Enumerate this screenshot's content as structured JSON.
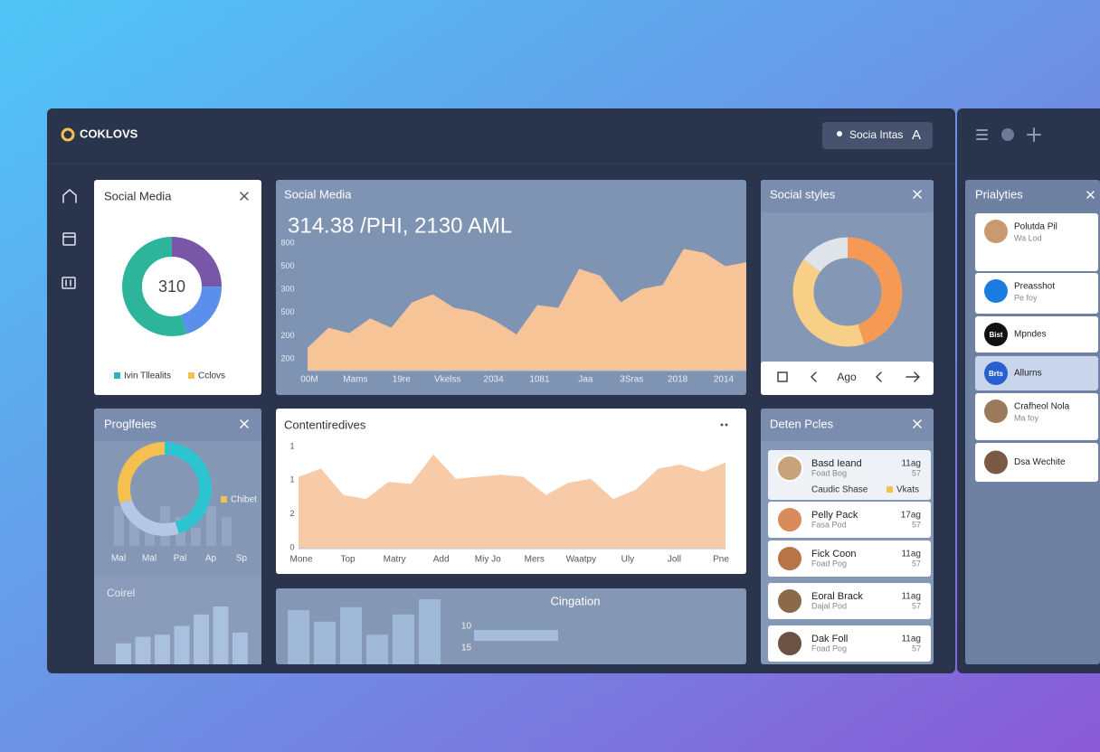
{
  "brand": "COKLOVS",
  "header_button": {
    "label": "Socia Intas",
    "letter": "A"
  },
  "styles_nav_label": "Ago",
  "people_card": {
    "title": "Deten Pcles",
    "items": [
      {
        "name": "Basd Ieand",
        "sub": "Foad Bog",
        "value": "11ag",
        "extra": "57"
      },
      {
        "name": "Pelly Pack",
        "sub": "Fasa Pod",
        "value": "17ag",
        "extra": "57"
      },
      {
        "name": "Fick Coon",
        "sub": "Foad Pog",
        "value": "11ag",
        "extra": "57"
      },
      {
        "name": "Eoral Brack",
        "sub": "Dajal Pod",
        "value": "11ag",
        "extra": "57"
      },
      {
        "name": "Dak Foll",
        "sub": "Foad Pog",
        "value": "11ag",
        "extra": "57"
      }
    ],
    "footer": [
      "Caudic Shase",
      "Vkats"
    ]
  },
  "side_panel": {
    "title": "Prialyties",
    "items": [
      {
        "name": "Polutda Pil",
        "sub": "Wa Lod"
      },
      {
        "name": "Preasshot",
        "sub": "Pe foy"
      },
      {
        "name": "Mpndes",
        "avatar": "Bist"
      },
      {
        "name": "Allurns",
        "avatar": "Brts"
      },
      {
        "name": "Crafheol Nola",
        "sub": "Ma foy"
      },
      {
        "name": "Dsa Wechite"
      }
    ]
  },
  "chart_data": [
    {
      "type": "pie",
      "title": "Social Media",
      "center_label": "310",
      "values": [
        25,
        20,
        55
      ],
      "colors": [
        "#7a56a8",
        "#5a8fec",
        "#2db59c"
      ],
      "legend": [
        {
          "name": "Ivin Tllealits",
          "color": "#2bb6c4"
        },
        {
          "name": "Cclovs",
          "color": "#f4c150"
        }
      ]
    },
    {
      "type": "area",
      "title": "Social Media",
      "subtitle": "314.38 /PHI, 2130 AML",
      "y_labels": [
        "800",
        "500",
        "300",
        "500",
        "200",
        "200"
      ],
      "x_labels": [
        "00M",
        "Mams",
        "19re",
        "Vkelss",
        "2034",
        "1081",
        "Jaa",
        "3Sras",
        "2018",
        "2014"
      ],
      "values": [
        17,
        32,
        28,
        39,
        32,
        51,
        57,
        47,
        44,
        37,
        27,
        49,
        47,
        76,
        71,
        51,
        61,
        64,
        91,
        88,
        78,
        81
      ],
      "ylim": [
        0,
        100
      ],
      "color": "#f6c496"
    },
    {
      "type": "pie",
      "title": "Social styles",
      "values": [
        45,
        40,
        15
      ],
      "colors": [
        "#f59a55",
        "#f8cf86",
        "#dfe3ea"
      ]
    },
    {
      "type": "pie",
      "title": "Proglfeies",
      "values": [
        45,
        25,
        30
      ],
      "colors": [
        "#2ec4d0",
        "#b7c7e6",
        "#f4c150"
      ],
      "x_labels": [
        "Mal",
        "Mal",
        "Pal",
        "Ap",
        "Sp"
      ],
      "legend": [
        {
          "name": "Chibet",
          "color": "#f4c150"
        }
      ]
    },
    {
      "type": "area",
      "title": "Contentiredives",
      "y_labels": [
        "1",
        "1",
        "2",
        "0"
      ],
      "x_labels": [
        "Mone",
        "Top",
        "Matry",
        "Add",
        "Miy Jo",
        "Mers",
        "Waatpy",
        "Uly",
        "Joll",
        "Pne"
      ],
      "values": [
        71,
        79,
        53,
        49,
        66,
        64,
        93,
        69,
        71,
        73,
        71,
        53,
        65,
        69,
        49,
        58,
        79,
        83,
        76,
        85
      ],
      "ylim": [
        0,
        100
      ],
      "color": "#f8cba8"
    },
    {
      "type": "bar",
      "title": "Coirel",
      "values": [
        29,
        38,
        41,
        53,
        69,
        80,
        44
      ],
      "ylim": [
        0,
        100
      ],
      "color": "#a9c0de"
    },
    {
      "type": "bar",
      "title": "Cingation",
      "values": [
        75,
        59,
        79,
        41,
        69,
        90
      ],
      "ylim": [
        0,
        100
      ],
      "color": "#9fb8d8",
      "y_labels": [
        "10",
        "15"
      ]
    }
  ]
}
